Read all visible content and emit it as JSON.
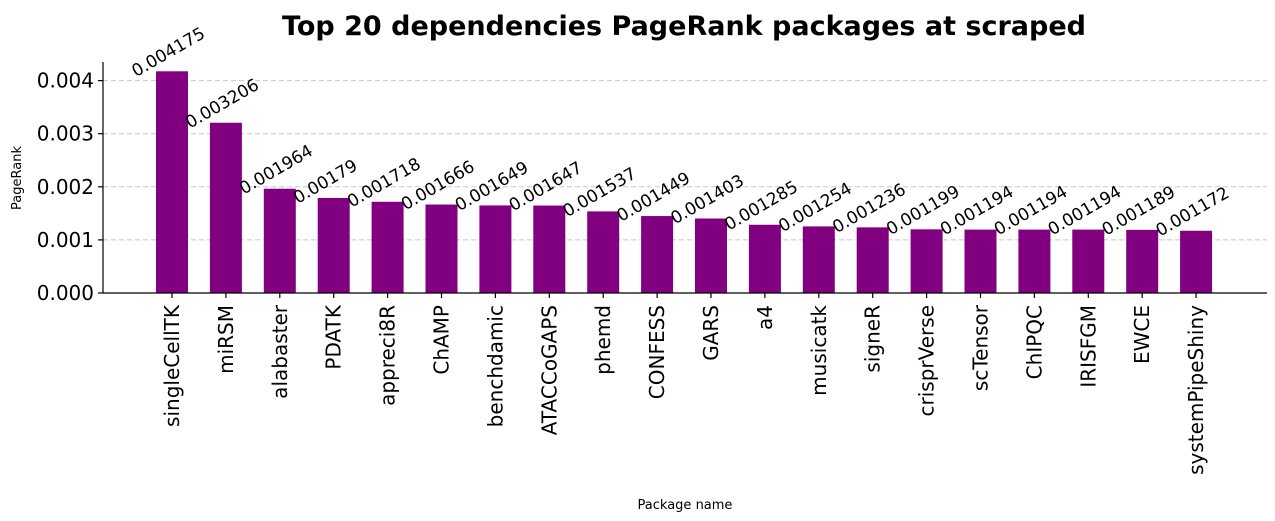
{
  "chart_data": {
    "type": "bar",
    "title": "Top 20 dependencies PageRank packages at scraped",
    "xlabel": "Package name",
    "ylabel": "PageRank",
    "ylim": [
      0,
      0.00435
    ],
    "yticks": [
      0.0,
      0.001,
      0.002,
      0.003,
      0.004
    ],
    "ytick_labels": [
      "0.000",
      "0.001",
      "0.002",
      "0.003",
      "0.004"
    ],
    "grid": "y",
    "bar_color": "#800080",
    "categories": [
      "singleCellTK",
      "miRSM",
      "alabaster",
      "PDATK",
      "appreci8R",
      "ChAMP",
      "benchdamic",
      "ATACCoGAPS",
      "phemd",
      "CONFESS",
      "GARS",
      "a4",
      "musicatk",
      "signeR",
      "crisprVerse",
      "scTensor",
      "ChIPQC",
      "IRISFGM",
      "EWCE",
      "systemPipeShiny"
    ],
    "values": [
      0.004175,
      0.003206,
      0.001964,
      0.00179,
      0.001718,
      0.001666,
      0.001649,
      0.001647,
      0.001537,
      0.001449,
      0.001403,
      0.001285,
      0.001254,
      0.001236,
      0.001199,
      0.001194,
      0.001194,
      0.001194,
      0.001189,
      0.001172
    ],
    "data_labels": [
      "0.004175",
      "0.003206",
      "0.001964",
      "0.00179",
      "0.001718",
      "0.001666",
      "0.001649",
      "0.001647",
      "0.001537",
      "0.001449",
      "0.001403",
      "0.001285",
      "0.001254",
      "0.001236",
      "0.001199",
      "0.001194",
      "0.001194",
      "0.001194",
      "0.001189",
      "0.001172"
    ]
  }
}
